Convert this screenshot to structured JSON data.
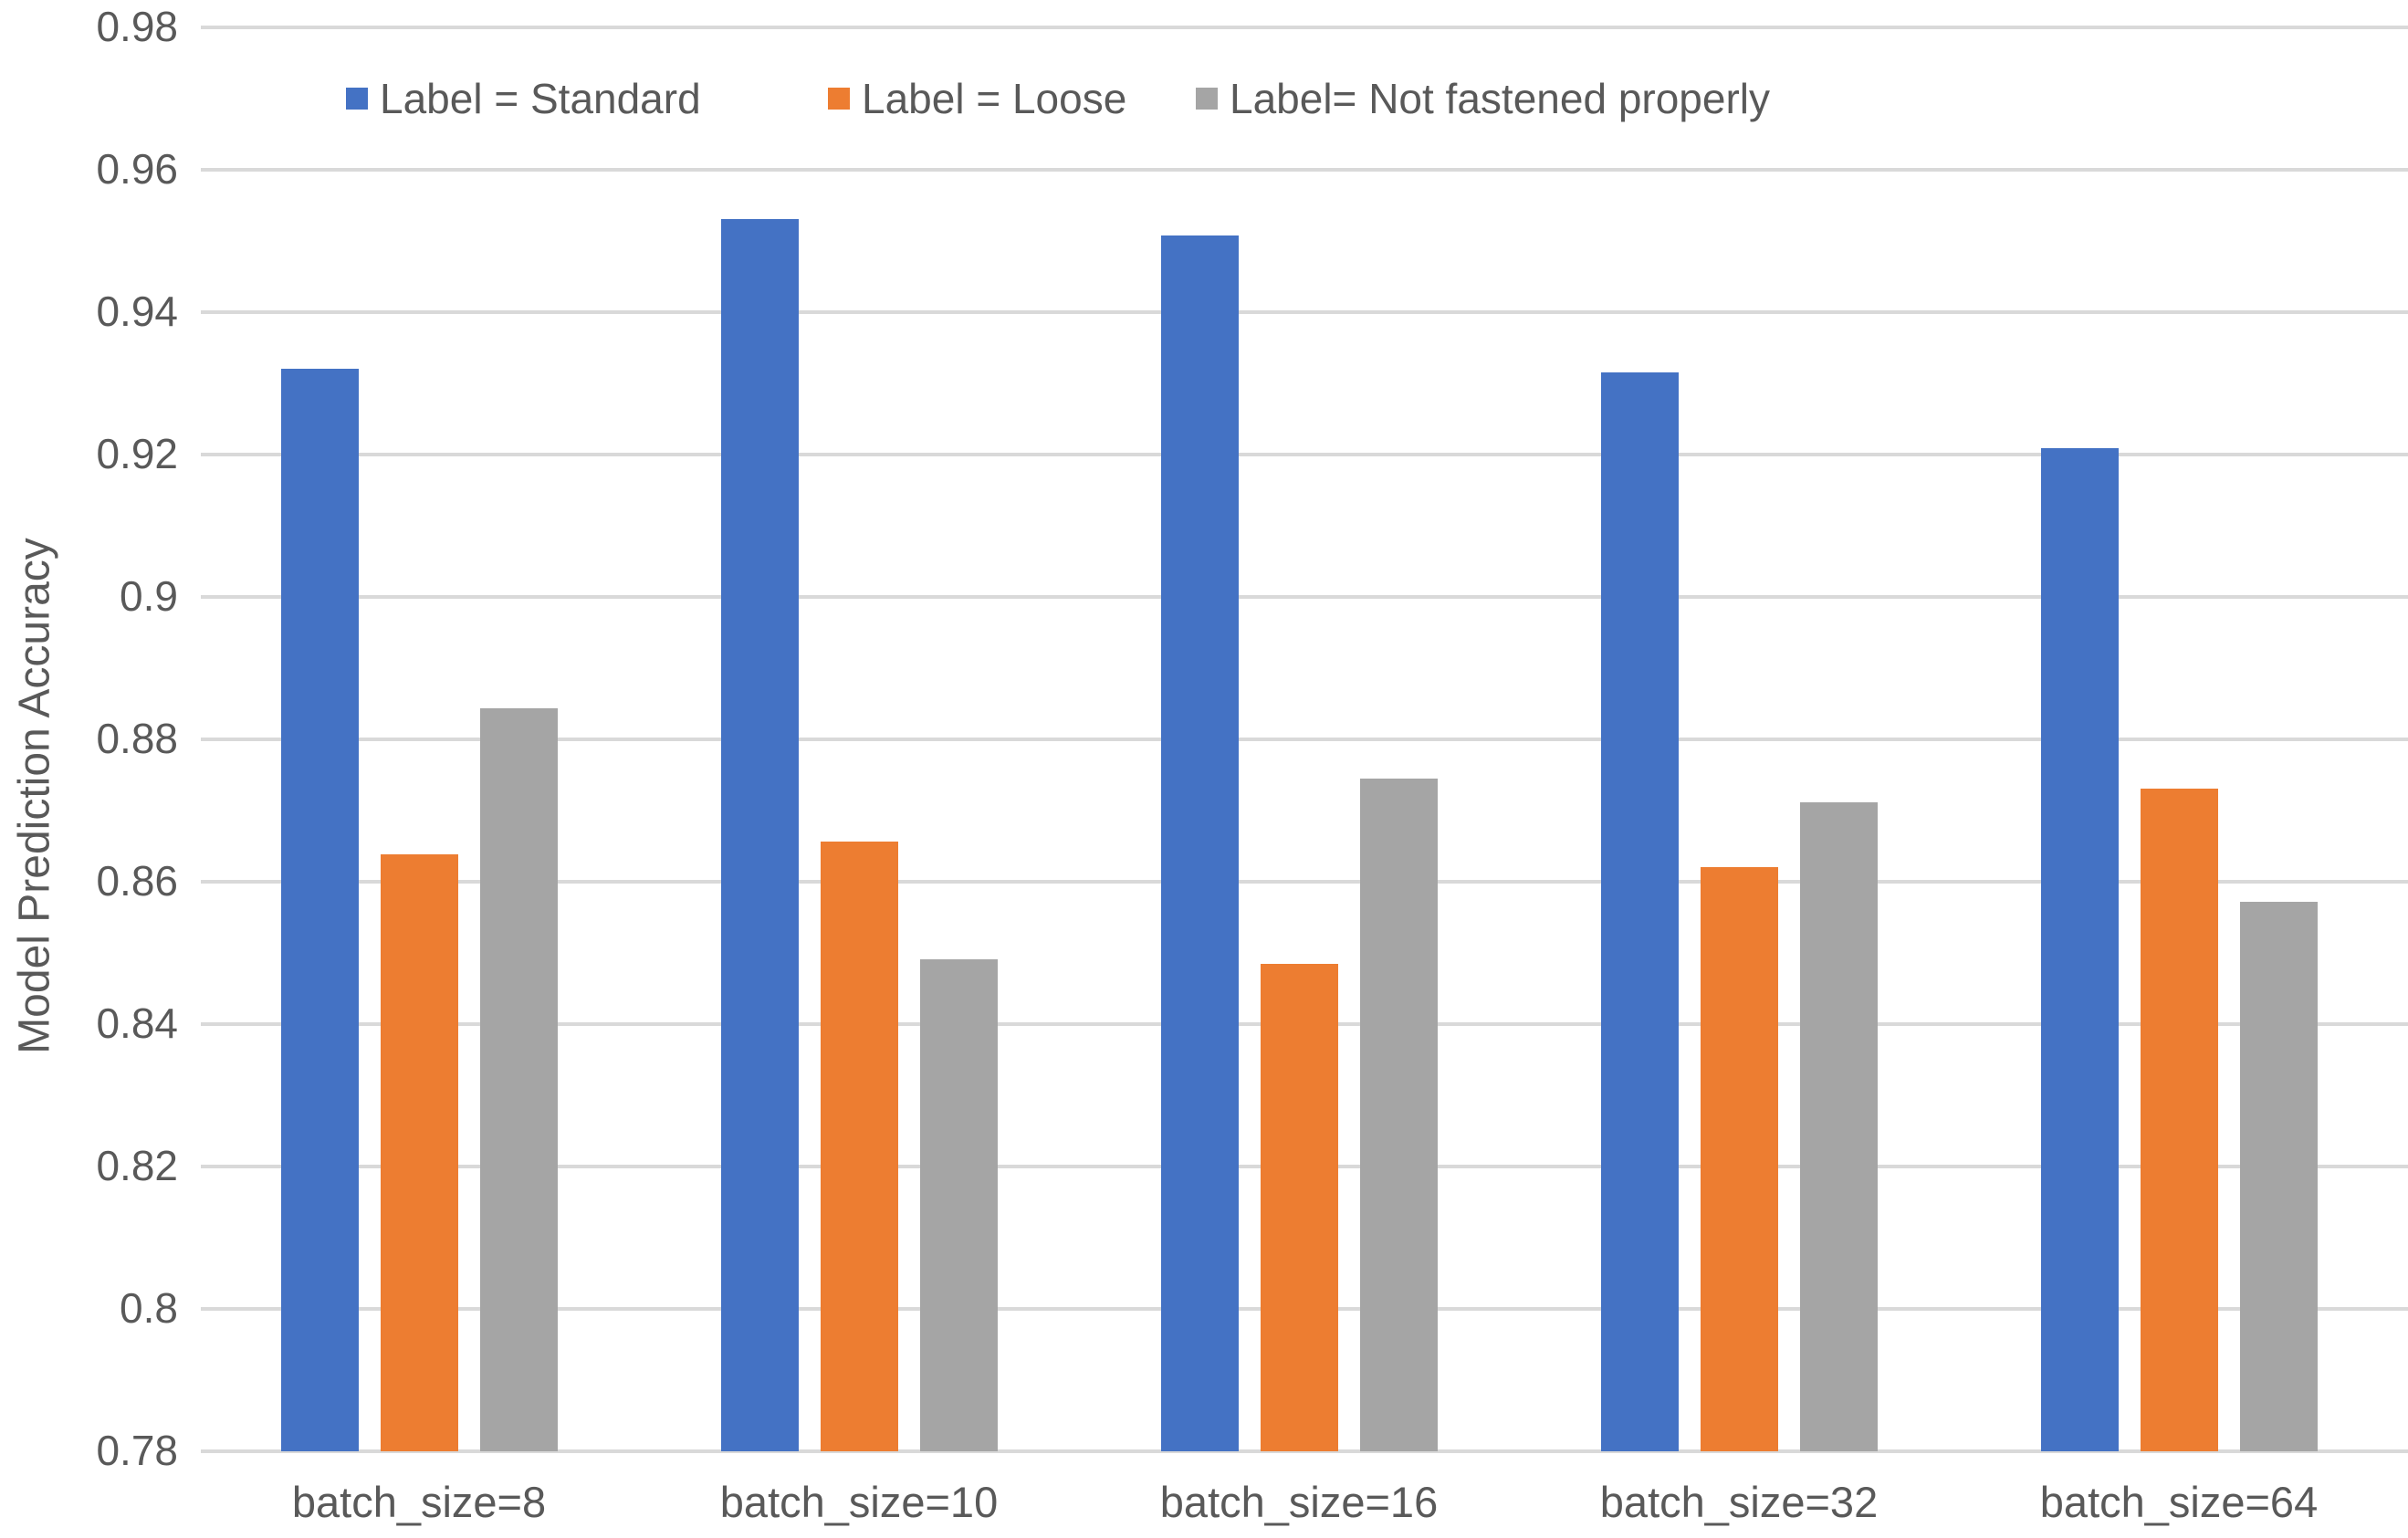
{
  "chart_data": {
    "type": "bar",
    "title": "",
    "categories": [
      "batch_size=8",
      "batch_size=10",
      "batch_size=16",
      "batch_size=32",
      "batch_size=64"
    ],
    "series": [
      {
        "name": "Label = Standard",
        "color": "#4472C4",
        "values": [
          0.932,
          0.9531,
          0.9508,
          0.9316,
          0.9209
        ]
      },
      {
        "name": "Label = Loose",
        "color": "#ED7D31",
        "values": [
          0.8638,
          0.8657,
          0.8485,
          0.8621,
          0.8731
        ]
      },
      {
        "name": "Label= Not fastened properly",
        "color": "#A5A5A5",
        "values": [
          0.8843,
          0.8491,
          0.8745,
          0.8712,
          0.8572
        ]
      }
    ],
    "xlabel": "",
    "ylabel": "Model Prediction Accuracy",
    "ylim": [
      0.78,
      0.98
    ],
    "ytick_step": 0.02,
    "ytick_labels": [
      "0.98",
      "0.96",
      "0.94",
      "0.92",
      "0.9",
      "0.88",
      "0.86",
      "0.84",
      "0.82",
      "0.8",
      "0.78"
    ],
    "grid": true,
    "legend_position": "top",
    "gridline_color": "#D9D9D9",
    "text_color": "#595959",
    "background_color": "#FFFFFF"
  }
}
